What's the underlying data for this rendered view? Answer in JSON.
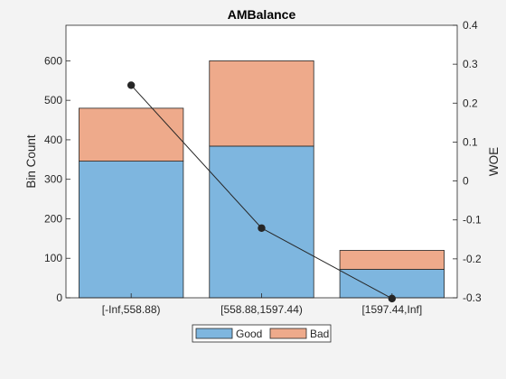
{
  "chart_data": {
    "type": "bar",
    "title": "AMBalance",
    "categories": [
      "[-Inf,558.88)",
      "[558.88,1597.44)",
      "[1597.44,Inf]"
    ],
    "series": [
      {
        "name": "Good",
        "values": [
          346,
          384,
          72
        ],
        "color": "#7eb6df",
        "stacked": true
      },
      {
        "name": "Bad",
        "values": [
          134,
          216,
          48
        ],
        "color": "#eeaa8b",
        "stacked": true
      }
    ],
    "line_series": {
      "values": [
        0.246,
        -0.121,
        -0.302
      ],
      "axis": "right",
      "color": "#262626"
    },
    "ylabel": "Bin Count",
    "ylabel_right": "WOE",
    "ylim": [
      0,
      690
    ],
    "ylim_right": [
      -0.3,
      0.4
    ],
    "yticks": [
      0,
      100,
      200,
      300,
      400,
      500,
      600
    ],
    "yticks_right": [
      -0.3,
      -0.2,
      -0.1,
      0,
      0.1,
      0.2,
      0.3,
      0.4
    ],
    "yticks_right_labels": [
      "-0.3",
      "-0.2",
      "-0.1",
      "0",
      "0.1",
      "0.2",
      "0.3",
      "0.4"
    ],
    "legend_position": "bottom",
    "grid": false
  }
}
